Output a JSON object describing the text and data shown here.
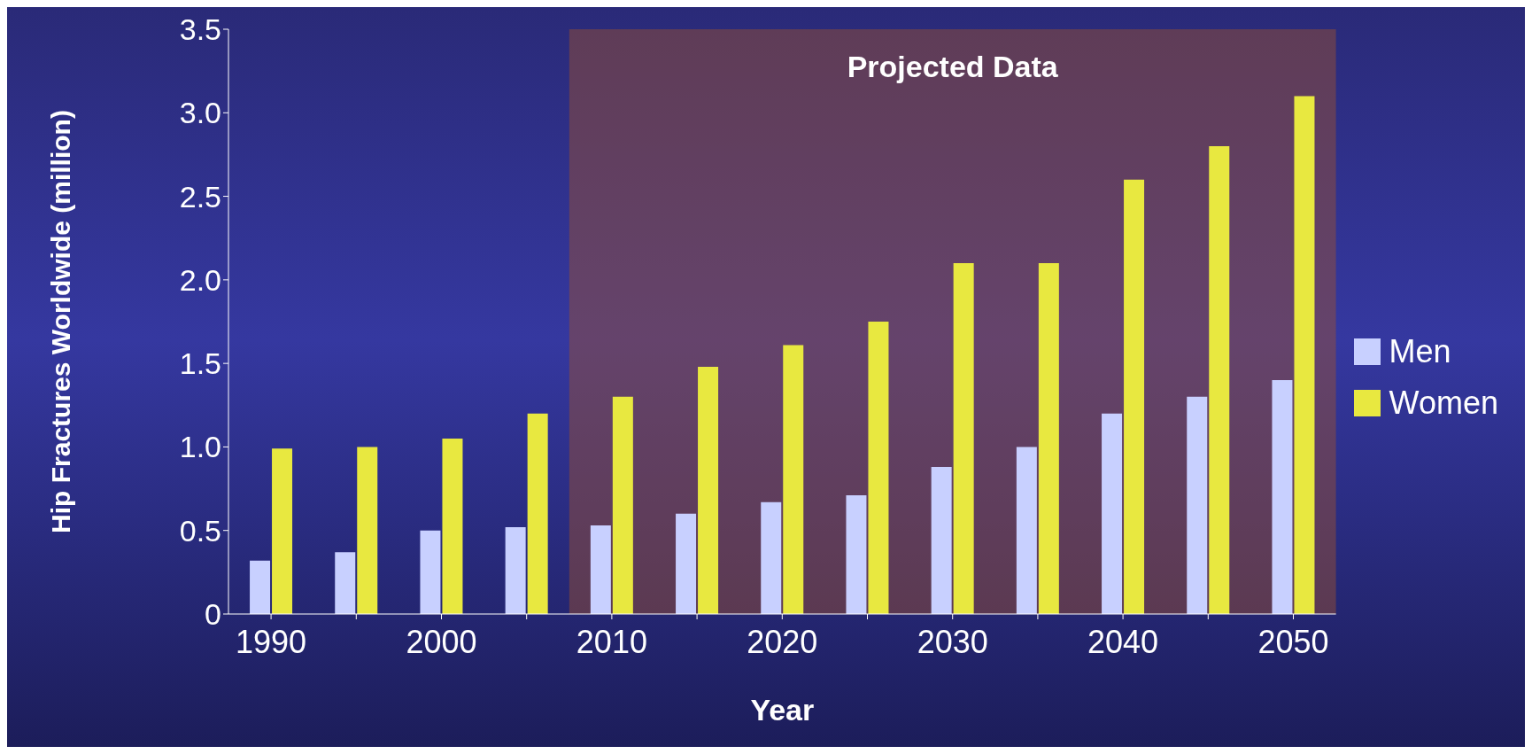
{
  "chart_data": {
    "type": "bar",
    "xlabel": "Year",
    "ylabel": "Hip Fractures Worldwide (million)",
    "categories": [
      "1990",
      null,
      "2000",
      null,
      "2010",
      null,
      "2020",
      null,
      "2030",
      null,
      "2040",
      null,
      "2050"
    ],
    "series": [
      {
        "name": "Men",
        "color": "#c8d0ff",
        "values": [
          0.32,
          0.37,
          0.5,
          0.52,
          0.53,
          0.6,
          0.67,
          0.71,
          0.88,
          1.0,
          1.2,
          1.3,
          1.4
        ]
      },
      {
        "name": "Women",
        "color": "#e8e840",
        "values": [
          0.99,
          1.0,
          1.05,
          1.2,
          1.3,
          1.48,
          1.61,
          1.75,
          2.1,
          2.1,
          2.6,
          2.8,
          3.1
        ]
      }
    ],
    "ylim": [
      0,
      3.5
    ],
    "yticks": [
      0,
      {
        "value": 0.5,
        "label": "0.5"
      },
      {
        "value": 1,
        "label": "1.0"
      },
      {
        "value": 1.5,
        "label": "1.5"
      },
      {
        "value": 2,
        "label": "2.0"
      },
      {
        "value": 2.5,
        "label": "2.5"
      },
      {
        "value": 3,
        "label": "3.0"
      },
      {
        "value": 3.5,
        "label": "3.5"
      }
    ],
    "bands": [
      {
        "axis": "x",
        "from": "2010",
        "to": "2050",
        "label": "Projected Data",
        "color": "#a0522d"
      }
    ],
    "legend": "right",
    "grid": false
  }
}
